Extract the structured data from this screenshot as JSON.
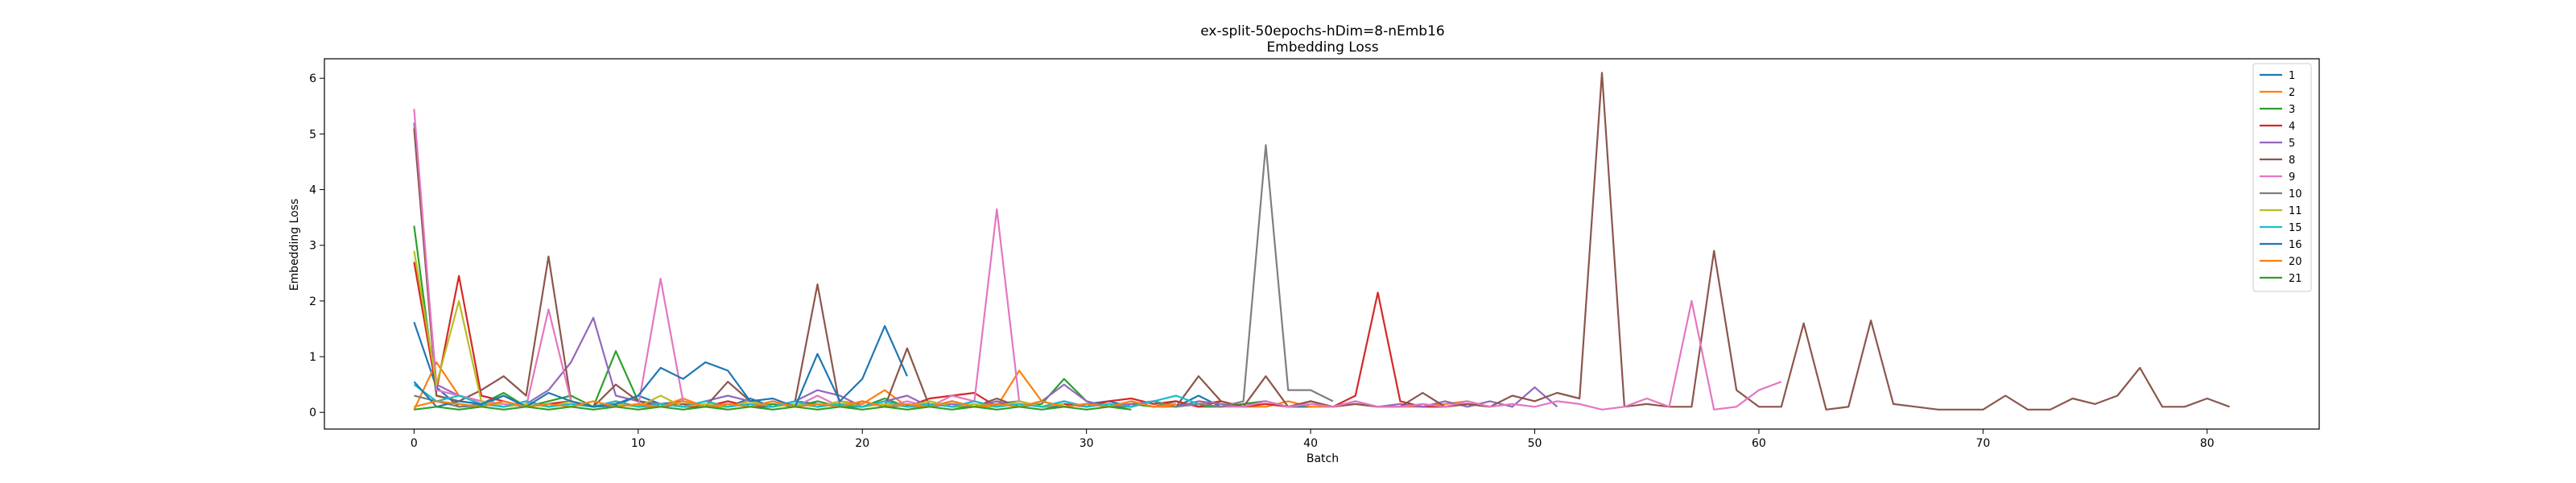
{
  "chart_data": {
    "type": "line",
    "title": "ex-split-50epochs-hDim=8-nEmb16",
    "subtitle": "Embedding Loss",
    "xlabel": "Batch",
    "ylabel": "Embedding Loss",
    "xlim": [
      -4,
      85
    ],
    "ylim": [
      -0.3,
      6.35
    ],
    "xticks": [
      0,
      10,
      20,
      30,
      40,
      50,
      60,
      70,
      80
    ],
    "yticks": [
      0,
      1,
      2,
      3,
      4,
      5,
      6
    ],
    "grid": false,
    "legend_position": "top-right",
    "series": [
      {
        "name": "1",
        "color": "#1f77b4",
        "values": [
          1.62,
          0.45,
          0.1,
          0.12,
          0.3,
          0.1,
          0.15,
          0.2,
          0.1,
          0.12,
          0.3,
          0.15,
          0.2,
          0.1,
          0.1,
          0.25,
          0.1,
          0.2,
          0.15,
          0.1,
          0.2,
          0.1,
          0.12,
          0.1,
          0.2,
          0.1,
          0.15,
          0.2,
          0.1,
          0.1,
          0.15,
          0.2,
          0.1,
          0.2,
          0.1,
          0.3,
          0.1,
          0.15,
          0.2,
          0.1,
          0.1
        ]
      },
      {
        "name": "2",
        "color": "#ff7f0e",
        "values": [
          0.05,
          0.9,
          0.3,
          0.2,
          0.1,
          0.2,
          0.1,
          0.15,
          0.1,
          0.2,
          0.1,
          0.1,
          0.25,
          0.1,
          0.1,
          0.2,
          0.1,
          0.15,
          0.1,
          0.2,
          0.15,
          0.4,
          0.1,
          0.1,
          0.2,
          0.1,
          0.1,
          0.75,
          0.2,
          0.1,
          0.15,
          0.1,
          0.2,
          0.1,
          0.1,
          0.15,
          0.2,
          0.1,
          0.1,
          0.2,
          0.1,
          0.1,
          0.15,
          0.1,
          0.1,
          0.1,
          0.15,
          0.2,
          0.1
        ]
      },
      {
        "name": "3",
        "color": "#2ca02c",
        "values": [
          3.35,
          0.3,
          0.2,
          0.15,
          0.35,
          0.1,
          0.2,
          0.3,
          0.1,
          1.1,
          0.2,
          0.15,
          0.1,
          0.1,
          0.2,
          0.1,
          0.15,
          0.1,
          0.2,
          0.1,
          0.1,
          0.25,
          0.1,
          0.2,
          0.1,
          0.1,
          0.2,
          0.1,
          0.15,
          0.6,
          0.2,
          0.1,
          0.15,
          0.1,
          0.2,
          0.1,
          0.1,
          0.15,
          0.2,
          0.1
        ]
      },
      {
        "name": "4",
        "color": "#d62728",
        "values": [
          2.7,
          0.4,
          2.45,
          0.3,
          0.2,
          0.1,
          0.15,
          0.2,
          0.1,
          0.2,
          0.1,
          0.15,
          0.1,
          0.1,
          0.2,
          0.1,
          0.1,
          0.2,
          0.1,
          0.15,
          0.1,
          0.2,
          0.1,
          0.25,
          0.3,
          0.35,
          0.1,
          0.2,
          0.1,
          0.15,
          0.1,
          0.2,
          0.25,
          0.15,
          0.2,
          0.1,
          0.2,
          0.1,
          0.15,
          0.1,
          0.2,
          0.1,
          0.3,
          2.15,
          0.2,
          0.1,
          0.1,
          0.15,
          0.1
        ]
      },
      {
        "name": "5",
        "color": "#9467bd",
        "values": [
          5.2,
          0.5,
          0.3,
          0.2,
          0.1,
          0.15,
          0.4,
          0.9,
          1.7,
          0.3,
          0.2,
          0.15,
          0.1,
          0.2,
          0.3,
          0.2,
          0.1,
          0.2,
          0.4,
          0.3,
          0.1,
          0.2,
          0.3,
          0.1,
          0.15,
          0.1,
          0.2,
          0.1,
          0.2,
          0.5,
          0.2,
          0.1,
          0.15,
          0.2,
          0.1,
          0.2,
          0.15,
          0.1,
          0.2,
          0.1,
          0.15,
          0.1,
          0.2,
          0.1,
          0.15,
          0.1,
          0.2,
          0.1,
          0.2,
          0.1,
          0.45,
          0.1
        ]
      },
      {
        "name": "8",
        "color": "#8c564b",
        "values": [
          5.1,
          0.3,
          0.2,
          0.4,
          0.65,
          0.3,
          2.8,
          0.2,
          0.1,
          0.5,
          0.2,
          0.1,
          0.15,
          0.1,
          0.55,
          0.2,
          0.1,
          0.2,
          2.3,
          0.1,
          0.2,
          0.1,
          1.15,
          0.1,
          0.2,
          0.1,
          0.25,
          0.1,
          0.2,
          0.1,
          0.15,
          0.1,
          0.1,
          0.2,
          0.1,
          0.65,
          0.2,
          0.1,
          0.65,
          0.1,
          0.2,
          0.1,
          0.15,
          0.1,
          0.1,
          0.35,
          0.1,
          0.15,
          0.1,
          0.3,
          0.2,
          0.35,
          0.25,
          6.1,
          0.1,
          0.15,
          0.1,
          0.1,
          2.9,
          0.4,
          0.1,
          0.1,
          1.6,
          0.05,
          0.1,
          1.65,
          0.15,
          0.1,
          0.05,
          0.05,
          0.05,
          0.3,
          0.05,
          0.05,
          0.25,
          0.15,
          0.3,
          0.8,
          0.1,
          0.1,
          0.25,
          0.1
        ]
      },
      {
        "name": "9",
        "color": "#e377c2",
        "values": [
          5.45,
          0.4,
          0.3,
          0.2,
          0.15,
          0.1,
          1.85,
          0.2,
          0.1,
          0.15,
          0.1,
          2.4,
          0.2,
          0.1,
          0.15,
          0.1,
          0.2,
          0.1,
          0.3,
          0.1,
          0.2,
          0.1,
          0.2,
          0.1,
          0.3,
          0.2,
          3.65,
          0.2,
          0.1,
          0.2,
          0.1,
          0.15,
          0.1,
          0.2,
          0.1,
          0.15,
          0.1,
          0.1,
          0.2,
          0.1,
          0.15,
          0.1,
          0.2,
          0.1,
          0.1,
          0.15,
          0.1,
          0.2,
          0.1,
          0.15,
          0.1,
          0.2,
          0.15,
          0.05,
          0.1,
          0.25,
          0.1,
          2.0,
          0.05,
          0.1,
          0.4,
          0.55
        ]
      },
      {
        "name": "10",
        "color": "#7f7f7f",
        "values": [
          0.3,
          0.2,
          0.1,
          0.15,
          0.1,
          0.2,
          0.1,
          0.15,
          0.1,
          0.2,
          0.1,
          0.15,
          0.1,
          0.2,
          0.1,
          0.15,
          0.1,
          0.2,
          0.1,
          0.15,
          0.1,
          0.2,
          0.1,
          0.15,
          0.1,
          0.2,
          0.1,
          0.15,
          0.1,
          0.2,
          0.1,
          0.15,
          0.1,
          0.2,
          0.1,
          0.15,
          0.1,
          0.2,
          4.8,
          0.4,
          0.4,
          0.2
        ]
      },
      {
        "name": "11",
        "color": "#bcbd22",
        "values": [
          2.9,
          0.5,
          2.0,
          0.2,
          0.1,
          0.15,
          0.1,
          0.2,
          0.1,
          0.15,
          0.1,
          0.3,
          0.1,
          0.15,
          0.1,
          0.2,
          0.1,
          0.15,
          0.1,
          0.2,
          0.1,
          0.15,
          0.1,
          0.2,
          0.1,
          0.15,
          0.1,
          0.2,
          0.1,
          0.15
        ]
      },
      {
        "name": "15",
        "color": "#17becf",
        "values": [
          0.5,
          0.2,
          0.3,
          0.15,
          0.1,
          0.2,
          0.1,
          0.15,
          0.1,
          0.2,
          0.1,
          0.15,
          0.1,
          0.2,
          0.1,
          0.15,
          0.1,
          0.2,
          0.1,
          0.15,
          0.1,
          0.2,
          0.1,
          0.15,
          0.1,
          0.2,
          0.1,
          0.15,
          0.1,
          0.2,
          0.1,
          0.15,
          0.1,
          0.2,
          0.3,
          0.15
        ]
      },
      {
        "name": "16",
        "color": "#1f77b4",
        "values": [
          0.55,
          0.1,
          0.2,
          0.15,
          0.3,
          0.1,
          0.35,
          0.2,
          0.1,
          0.15,
          0.3,
          0.8,
          0.6,
          0.9,
          0.75,
          0.2,
          0.25,
          0.1,
          1.05,
          0.2,
          0.6,
          1.55,
          0.65
        ]
      },
      {
        "name": "20",
        "color": "#ff7f0e",
        "values": [
          0.1,
          0.2,
          0.15,
          0.1,
          0.2,
          0.1,
          0.15,
          0.1,
          0.2,
          0.1,
          0.15,
          0.1,
          0.2,
          0.1,
          0.15,
          0.1,
          0.2,
          0.1,
          0.15,
          0.1,
          0.2,
          0.1,
          0.15,
          0.1,
          0.2,
          0.1,
          0.15,
          0.1,
          0.2,
          0.1,
          0.15,
          0.1,
          0.2,
          0.1,
          0.15
        ]
      },
      {
        "name": "21",
        "color": "#2ca02c",
        "values": [
          0.05,
          0.1,
          0.05,
          0.1,
          0.05,
          0.1,
          0.05,
          0.1,
          0.05,
          0.1,
          0.05,
          0.1,
          0.05,
          0.1,
          0.05,
          0.1,
          0.05,
          0.1,
          0.05,
          0.1,
          0.05,
          0.1,
          0.05,
          0.1,
          0.05,
          0.1,
          0.05,
          0.1,
          0.05,
          0.1,
          0.05,
          0.1,
          0.05
        ]
      }
    ]
  }
}
